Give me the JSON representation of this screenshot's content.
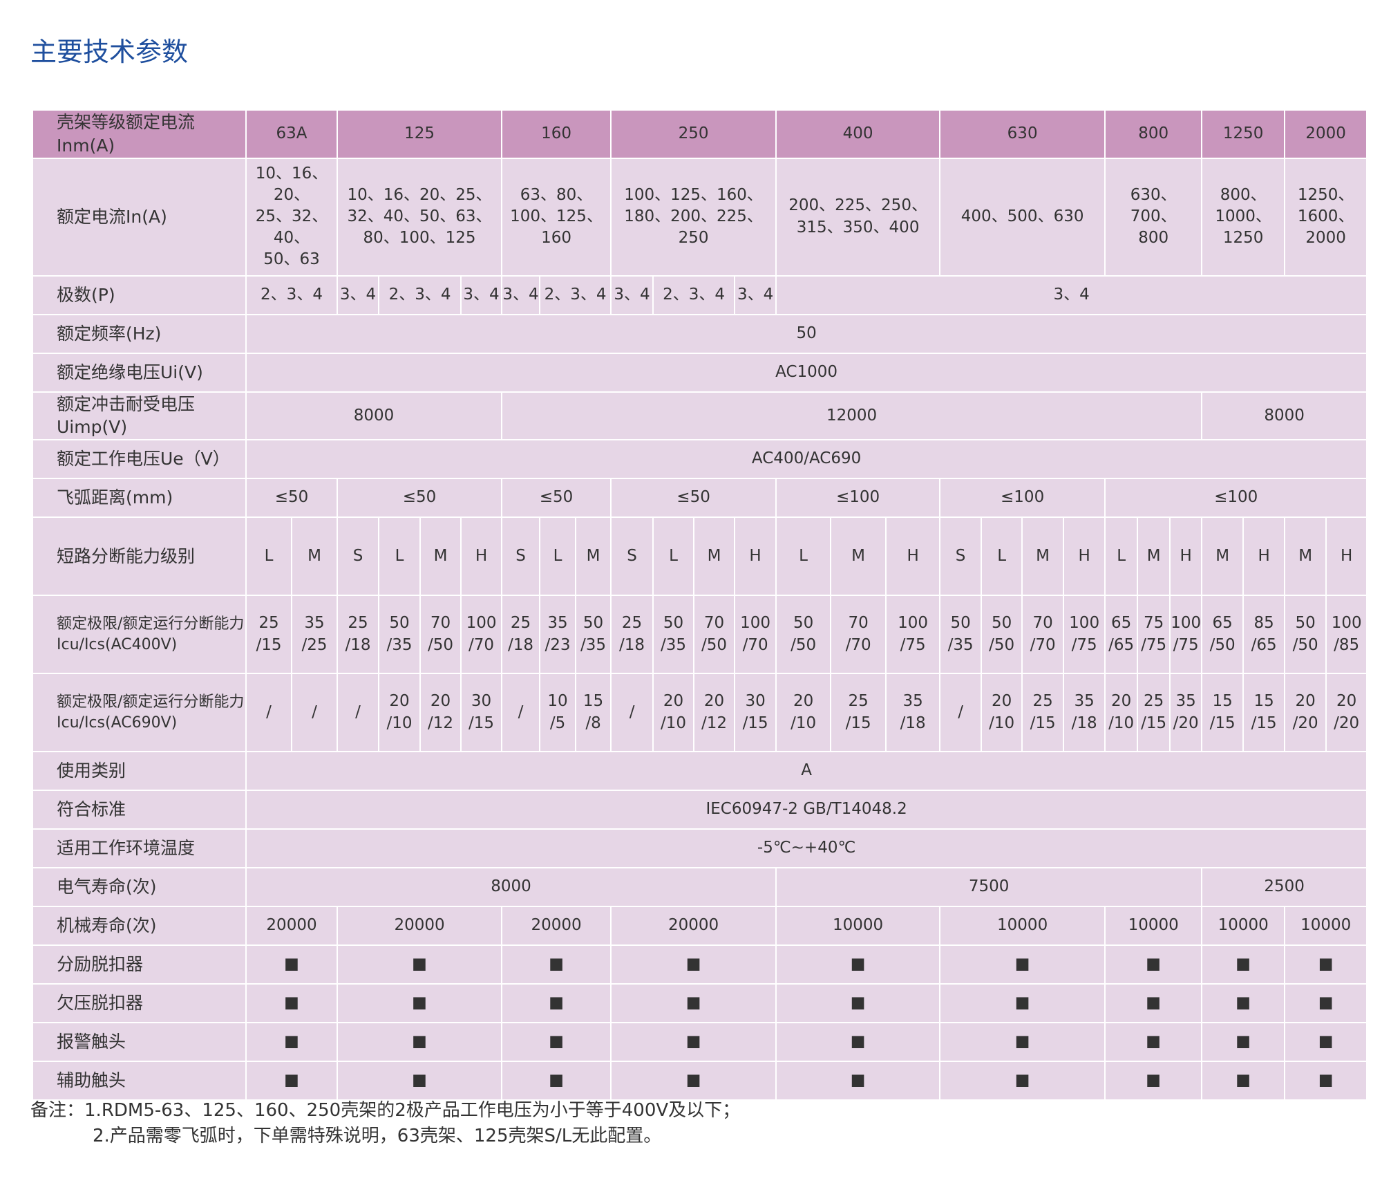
{
  "header": {
    "title": "主要技术参数"
  },
  "table": {
    "rows": [
      {
        "label": "壳架等级额定电流Ⅰnm(A)",
        "cells": [
          "63A",
          "125",
          "160",
          "250",
          "400",
          "630",
          "800",
          "1250",
          "2000"
        ]
      },
      {
        "label": "额定电流In(A)",
        "cells": [
          "10、16、20、\n25、32、40、\n50、63",
          "10、16、20、25、\n32、40、50、63、\n80、100、125",
          "63、80、\n100、125、\n160",
          "100、125、160、\n180、200、225、\n250",
          "200、225、250、\n315、350、400",
          "400、500、630",
          "630、\n700、\n800",
          "800、\n1000、\n1250",
          "1250、\n1600、\n2000"
        ]
      },
      {
        "label": "极数(P)",
        "cells": [
          "2、3、4",
          "3、4",
          "2、3、4",
          "3、4",
          "3、4",
          "2、3、4",
          "3、4",
          "2、3、4",
          "3、4",
          "3、4"
        ]
      },
      {
        "label": "额定频率(Hz)",
        "cells": [
          "50"
        ]
      },
      {
        "label": "额定绝缘电压Ui(V)",
        "cells": [
          "AC1000"
        ]
      },
      {
        "label": "额定冲击耐受电压Uimp(V)",
        "cells": [
          "8000",
          "12000",
          "8000"
        ]
      },
      {
        "label": "额定工作电压Ue（V）",
        "cells": [
          "AC400/AC690"
        ]
      },
      {
        "label": "飞弧距离(mm)",
        "cells": [
          "≤50",
          "≤50",
          "≤50",
          "≤50",
          "≤100",
          "≤100",
          "≤100"
        ]
      },
      {
        "label": "短路分断能力级别",
        "cells": [
          "L",
          "M",
          "S",
          "L",
          "M",
          "H",
          "S",
          "L",
          "M",
          "S",
          "L",
          "M",
          "H",
          "L",
          "M",
          "H",
          "S",
          "L",
          "M",
          "H",
          "L",
          "M",
          "H",
          "M",
          "H",
          "M",
          "H"
        ]
      },
      {
        "label": "额定极限/额定运行分断能力\nIcu/Ics(AC400V)",
        "cells": [
          "25\n/15",
          "35\n/25",
          "25\n/18",
          "50\n/35",
          "70\n/50",
          "100\n/70",
          "25\n/18",
          "35\n/23",
          "50\n/35",
          "25\n/18",
          "50\n/35",
          "70\n/50",
          "100\n/70",
          "50\n/50",
          "70\n/70",
          "100\n/75",
          "50\n/35",
          "50\n/50",
          "70\n/70",
          "100\n/75",
          "65\n/65",
          "75\n/75",
          "100\n/75",
          "65\n/50",
          "85\n/65",
          "50\n/50",
          "100\n/85"
        ]
      },
      {
        "label": "额定极限/额定运行分断能力\nIcu/Ics(AC690V)",
        "cells": [
          "/",
          "/",
          "/",
          "20\n/10",
          "20\n/12",
          "30\n/15",
          "/",
          "10\n/5",
          "15\n/8",
          "/",
          "20\n/10",
          "20\n/12",
          "30\n/15",
          "20\n/10",
          "25\n/15",
          "35\n/18",
          "/",
          "20\n/10",
          "25\n/15",
          "35\n/18",
          "20\n/10",
          "25\n/15",
          "35\n/20",
          "15\n/15",
          "15\n/15",
          "20\n/20",
          "20\n/20"
        ]
      },
      {
        "label": "使用类别",
        "cells": [
          "A"
        ]
      },
      {
        "label": "符合标准",
        "cells": [
          "IEC60947-2   GB/T14048.2"
        ]
      },
      {
        "label": "适用工作环境温度",
        "cells": [
          "-5℃~+40℃"
        ]
      },
      {
        "label": "电气寿命(次)",
        "cells": [
          "8000",
          "7500",
          "2500"
        ]
      },
      {
        "label": "机械寿命(次)",
        "cells": [
          "20000",
          "20000",
          "20000",
          "20000",
          "10000",
          "10000",
          "10000",
          "10000",
          "10000"
        ]
      },
      {
        "label": "分励脱扣器",
        "cells": [
          "■",
          "■",
          "■",
          "■",
          "■",
          "■",
          "■",
          "■",
          "■"
        ]
      },
      {
        "label": "欠压脱扣器",
        "cells": [
          "■",
          "■",
          "■",
          "■",
          "■",
          "■",
          "■",
          "■",
          "■"
        ]
      },
      {
        "label": "报警触头",
        "cells": [
          "■",
          "■",
          "■",
          "■",
          "■",
          "■",
          "■",
          "■",
          "■"
        ]
      },
      {
        "label": "辅助触头",
        "cells": [
          "■",
          "■",
          "■",
          "■",
          "■",
          "■",
          "■",
          "■",
          "■"
        ]
      }
    ]
  },
  "notes": {
    "prefix": "备注：",
    "items": [
      "1.RDM5-63、125、160、250壳架的2极产品工作电压为小于等于400V及以下；",
      "2.产品需零飞弧时，下单需特殊说明，63壳架、125壳架S/L无此配置。"
    ]
  }
}
